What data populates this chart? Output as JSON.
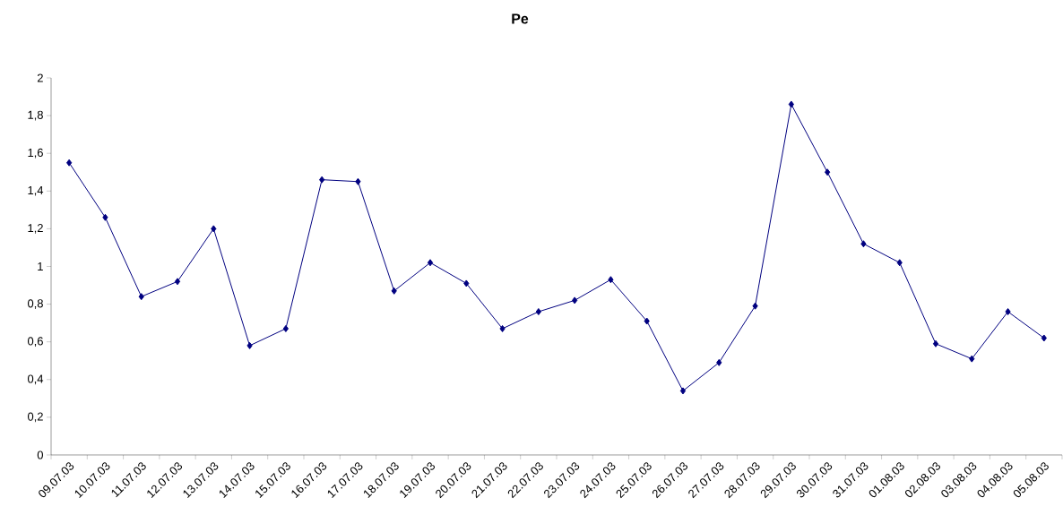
{
  "chart_data": {
    "type": "line",
    "title": "Pe",
    "categories": [
      "09.07.03",
      "10.07.03",
      "11.07.03",
      "12.07.03",
      "13.07.03",
      "14.07.03",
      "15.07.03",
      "16.07.03",
      "17.07.03",
      "18.07.03",
      "19.07.03",
      "20.07.03",
      "21.07.03",
      "22.07.03",
      "23.07.03",
      "24.07.03",
      "25.07.03",
      "26.07.03",
      "27.07.03",
      "28.07.03",
      "29.07.03",
      "30.07.03",
      "31.07.03",
      "01.08.03",
      "02.08.03",
      "03.08.03",
      "04.08.03",
      "05.08.03"
    ],
    "values": [
      1.55,
      1.26,
      0.84,
      0.92,
      1.2,
      0.58,
      0.67,
      1.46,
      1.45,
      0.87,
      1.02,
      0.91,
      0.67,
      0.76,
      0.82,
      0.93,
      0.71,
      0.34,
      0.49,
      0.79,
      1.86,
      1.5,
      1.12,
      1.02,
      0.59,
      0.51,
      0.76,
      0.62
    ],
    "color": "#000080",
    "marker": "diamond",
    "line_style": "solid",
    "grid": false,
    "ylim": [
      0,
      2
    ],
    "yticks": [
      0,
      {
        "value": 0.2,
        "label": "0,2"
      },
      {
        "value": 0.4,
        "label": "0,4"
      },
      {
        "value": 0.6,
        "label": "0,6"
      },
      {
        "value": 0.8,
        "label": "0,8"
      },
      1,
      {
        "value": 1.2,
        "label": "1,2"
      },
      {
        "value": 1.4,
        "label": "1,4"
      },
      {
        "value": 1.6,
        "label": "1,6"
      },
      {
        "value": 1.8,
        "label": "1,8"
      },
      2
    ]
  }
}
